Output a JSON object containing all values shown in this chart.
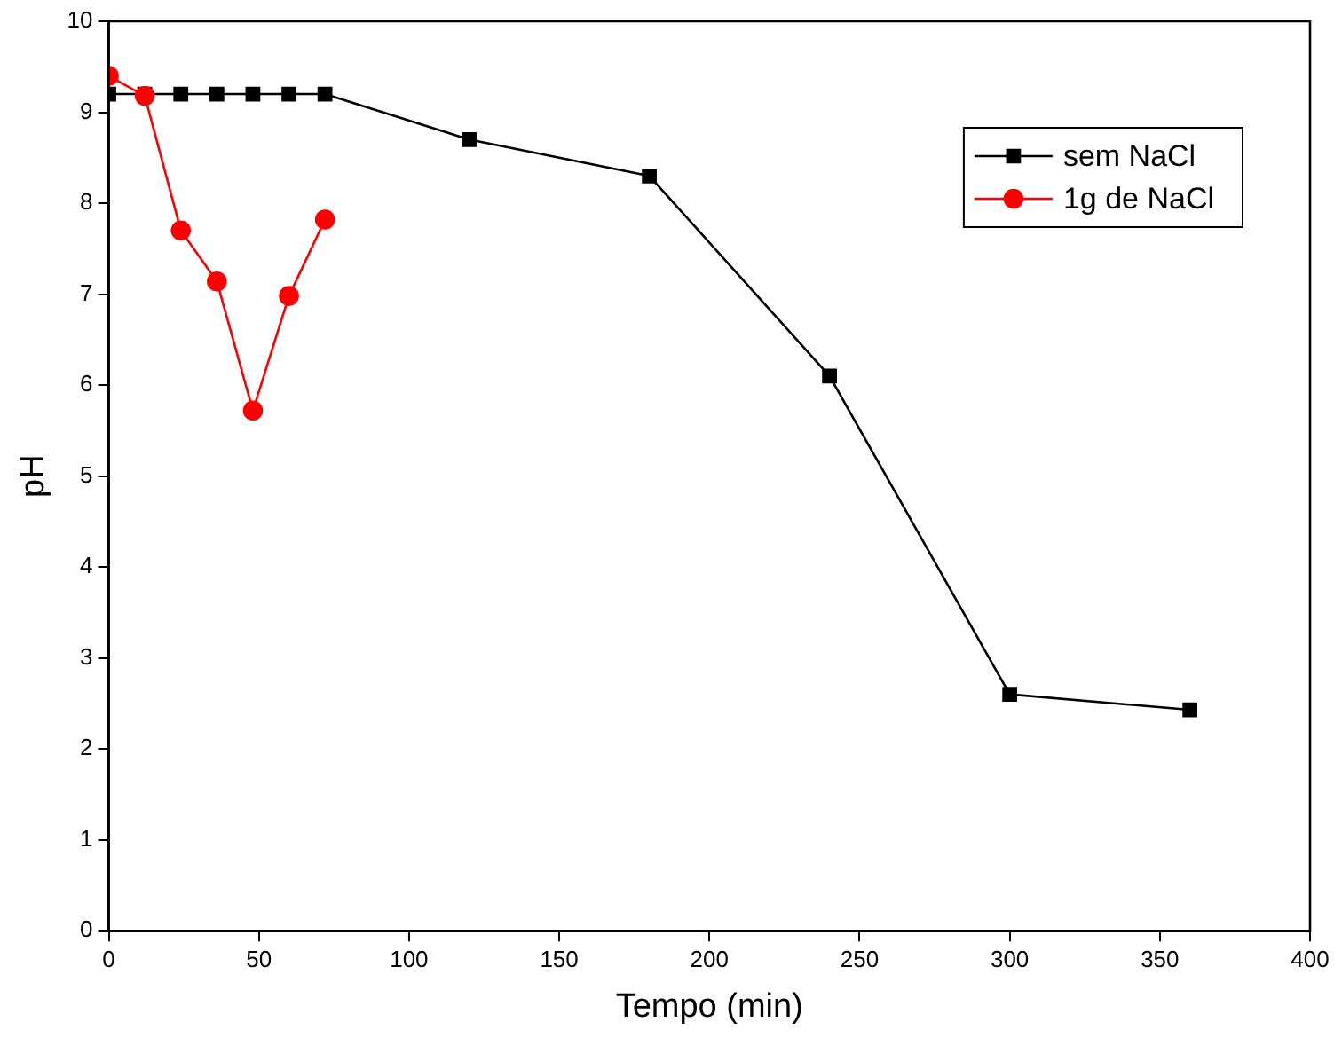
{
  "chart_data": {
    "type": "line",
    "xlabel": "Tempo (min)",
    "ylabel": "pH",
    "xlim": [
      0,
      400
    ],
    "xticks": [
      0,
      50,
      100,
      150,
      200,
      250,
      300,
      350,
      400
    ],
    "ylim": [
      0,
      10
    ],
    "yticks": [
      0,
      1,
      2,
      3,
      4,
      5,
      6,
      7,
      8,
      9,
      10
    ],
    "grid": false,
    "legend": "top right",
    "line_style": "solid",
    "series": [
      {
        "name": "sem NaCl",
        "color": "#000000",
        "marker": "square",
        "x": [
          0,
          12,
          24,
          36,
          48,
          60,
          72,
          120,
          180,
          240,
          300,
          360
        ],
        "values": [
          9.2,
          9.2,
          9.2,
          9.2,
          9.2,
          9.2,
          9.2,
          8.7,
          8.3,
          6.1,
          2.6,
          2.43
        ]
      },
      {
        "name": "1g de NaCl",
        "color": "#ff0000",
        "marker": "circle",
        "x": [
          0,
          12,
          24,
          36,
          48,
          60,
          72
        ],
        "values": [
          9.4,
          9.18,
          7.7,
          7.14,
          5.72,
          6.98,
          7.82
        ]
      }
    ]
  }
}
